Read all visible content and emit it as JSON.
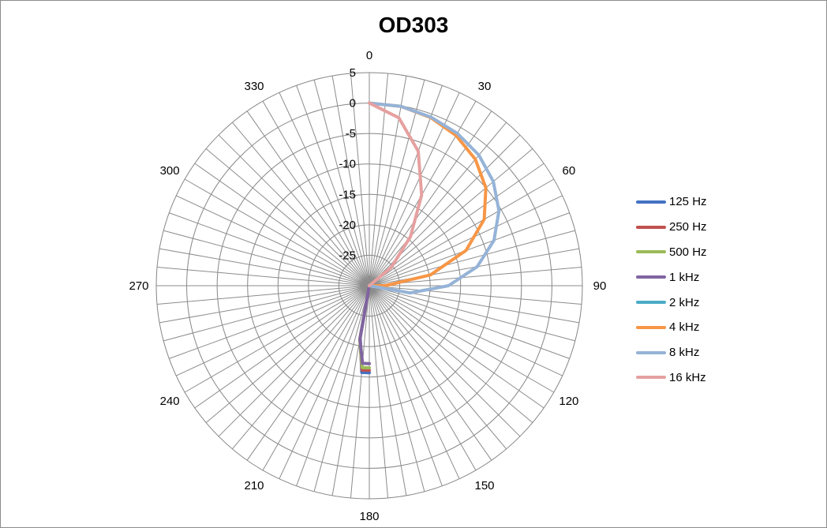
{
  "chart_data": {
    "type": "polar-line",
    "title": "OD303",
    "angle_ticks": [
      "0",
      "30",
      "60",
      "90",
      "120",
      "150",
      "180",
      "210",
      "240",
      "270",
      "300",
      "330"
    ],
    "angle_step_gridlines": 5,
    "radial_ticks": [
      "5",
      "0",
      "-5",
      "-10",
      "-15",
      "-20",
      "-25"
    ],
    "rlim": [
      -30,
      5
    ],
    "grid": true,
    "legend_position": "right",
    "series": [
      {
        "name": "125 Hz",
        "color": "#4472c4",
        "angles": [
          0,
          10,
          20,
          30,
          40,
          50,
          60,
          70,
          80,
          90,
          100,
          110,
          120,
          130,
          140,
          150,
          160,
          165,
          170,
          175,
          180
        ],
        "values": [
          -30,
          -30,
          -30,
          -30,
          -30,
          -30,
          -30,
          -30,
          -30,
          -30,
          -30,
          -30,
          -30,
          -30,
          -30,
          -30,
          -30,
          -30,
          -21.4,
          -15.7,
          -15.7
        ],
        "mirror": true
      },
      {
        "name": "250 Hz",
        "color": "#c0504d",
        "angles": [
          0,
          10,
          20,
          30,
          40,
          50,
          60,
          70,
          80,
          90,
          100,
          110,
          120,
          130,
          140,
          150,
          160,
          165,
          170,
          175,
          180
        ],
        "values": [
          -30,
          -30,
          -30,
          -30,
          -30,
          -30,
          -30,
          -30,
          -30,
          -30,
          -30,
          -30,
          -30,
          -30,
          -30,
          -30,
          -30,
          -30,
          -21.1,
          -16.1,
          -16.1
        ],
        "mirror": true
      },
      {
        "name": "500 Hz",
        "color": "#9bbb59",
        "angles": [
          0,
          10,
          20,
          30,
          40,
          50,
          60,
          70,
          80,
          90,
          100,
          110,
          120,
          130,
          140,
          150,
          160,
          165,
          170,
          175,
          180
        ],
        "values": [
          -30,
          -30,
          -30,
          -30,
          -30,
          -30,
          -30,
          -30,
          -30,
          -30,
          -30,
          -30,
          -30,
          -30,
          -30,
          -30,
          -30,
          -30,
          -21.0,
          -16.5,
          -16.5
        ],
        "mirror": true
      },
      {
        "name": "1 kHz",
        "color": "#8064a2",
        "angles": [
          0,
          10,
          20,
          30,
          40,
          50,
          60,
          70,
          80,
          90,
          100,
          110,
          120,
          130,
          140,
          150,
          160,
          165,
          170,
          175,
          180
        ],
        "values": [
          -30,
          -30,
          -30,
          -30,
          -30,
          -30,
          -30,
          -30,
          -30,
          -30,
          -30,
          -30,
          -30,
          -30,
          -30,
          -30,
          -30,
          -30,
          -21.1,
          -17.2,
          -17.2
        ],
        "mirror": true
      },
      {
        "name": "2 kHz",
        "color": "#4bacc6",
        "angles": [],
        "values": []
      },
      {
        "name": "4 kHz",
        "color": "#f79646",
        "angles": [
          0,
          10,
          20,
          30,
          40,
          50,
          60,
          70,
          80,
          90,
          100,
          110,
          120,
          130,
          140,
          150,
          160,
          165,
          170,
          175,
          180
        ],
        "values": [
          0,
          -0.1,
          -0.6,
          -1.5,
          -2.9,
          -5.0,
          -8.2,
          -13.1,
          -19.8,
          -27.4,
          -30,
          -30,
          -30,
          -30,
          -30,
          -30,
          -30,
          -30,
          -30,
          -30,
          -30
        ]
      },
      {
        "name": "8 kHz",
        "color": "#95b3d7",
        "angles": [
          0,
          10,
          20,
          30,
          40,
          50,
          60,
          70,
          80,
          90,
          100,
          110,
          120,
          130,
          140,
          150,
          160,
          165,
          170,
          175,
          180
        ],
        "values": [
          0,
          -0.1,
          -0.5,
          -1.1,
          -2.0,
          -3.4,
          -5.4,
          -8.2,
          -12.0,
          -17.0,
          -23.2,
          -30,
          -30,
          -30,
          -30,
          -30,
          -30,
          -30,
          -30,
          -30,
          -30
        ]
      },
      {
        "name": "16 kHz",
        "color": "#e6a0a0",
        "angles": [
          0,
          10,
          20,
          30,
          40,
          50,
          60,
          70,
          80,
          90,
          100,
          110,
          120,
          130,
          140,
          150,
          160,
          165,
          170,
          175,
          180
        ],
        "values": [
          0,
          -2.0,
          -6.5,
          -12.8,
          -19.5,
          -25.3,
          -30,
          -30,
          -30,
          -30,
          -30,
          -30,
          -30,
          -30,
          -30,
          -30,
          -30,
          -30,
          -30,
          -30,
          -30
        ]
      }
    ]
  }
}
